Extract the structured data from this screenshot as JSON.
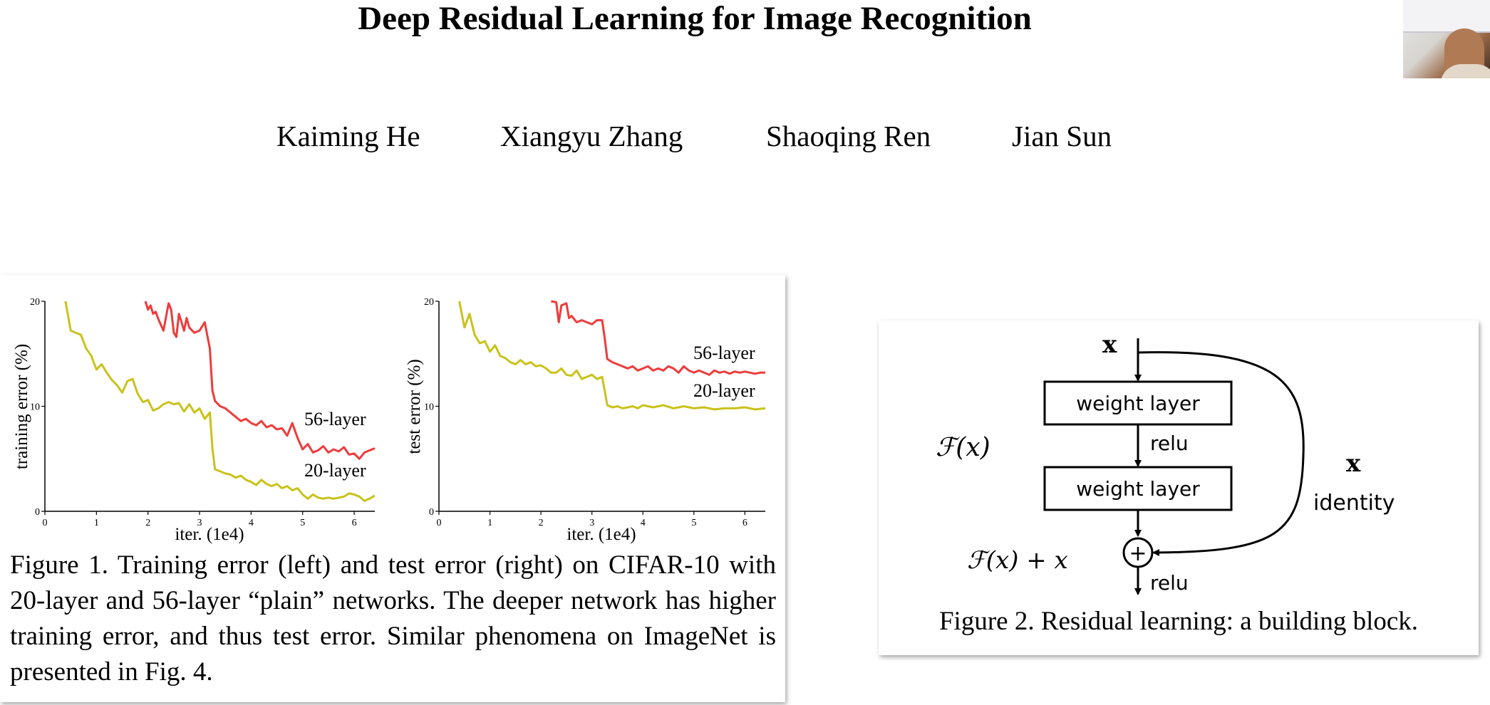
{
  "paper": {
    "title": "Deep Residual Learning for Image Recognition",
    "authors": [
      "Kaiming He",
      "Xiangyu Zhang",
      "Shaoqing Ren",
      "Jian Sun"
    ]
  },
  "figure1": {
    "caption": "Figure 1. Training error (left) and test error (right) on CIFAR-10 with 20-layer and 56-layer “plain” networks. The deeper network has higher training error, and thus test error. Similar phenomena on ImageNet is presented in Fig. 4."
  },
  "figure2": {
    "caption": "Figure 2. Residual learning: a building block.",
    "input_label": "x",
    "weight_layer_1": "weight layer",
    "weight_layer_2": "weight layer",
    "relu_1": "relu",
    "relu_2": "relu",
    "fx_label": "ℱ(x)",
    "sum_label": "ℱ(x) + x",
    "shortcut_x": "x",
    "identity_label": "identity",
    "plus_symbol": "+"
  },
  "colors": {
    "plain_56": "#ee3b3b",
    "plain_20": "#c9c21a"
  },
  "chart_data": [
    {
      "type": "line",
      "xlabel": "iter. (1e4)",
      "ylabel": "training error (%)",
      "xlim": [
        0,
        6.4
      ],
      "ylim": [
        0,
        20
      ],
      "xticks": [
        "0",
        "1",
        "2",
        "3",
        "4",
        "5",
        "6"
      ],
      "yticks": [
        "0",
        "10",
        "20"
      ],
      "series": [
        {
          "name": "56-layer",
          "color": "#ee3b3b",
          "x": [
            1.95,
            2.0,
            2.05,
            2.1,
            2.15,
            2.2,
            2.3,
            2.4,
            2.45,
            2.5,
            2.55,
            2.6,
            2.7,
            2.75,
            2.8,
            2.9,
            3.0,
            3.1,
            3.2,
            3.25,
            3.3,
            3.4,
            3.5,
            3.6,
            3.7,
            3.8,
            3.9,
            4.0,
            4.1,
            4.2,
            4.3,
            4.4,
            4.5,
            4.6,
            4.7,
            4.8,
            4.9,
            5.0,
            5.1,
            5.2,
            5.3,
            5.4,
            5.5,
            5.6,
            5.7,
            5.8,
            5.9,
            6.0,
            6.1,
            6.2,
            6.3,
            6.4
          ],
          "y": [
            20.0,
            19.2,
            19.6,
            18.8,
            19.0,
            18.3,
            17.2,
            19.8,
            19.2,
            17.0,
            16.6,
            18.8,
            17.2,
            18.4,
            17.5,
            17.0,
            17.2,
            18.0,
            15.5,
            11.5,
            10.5,
            10.0,
            9.8,
            9.4,
            9.0,
            8.6,
            8.8,
            8.4,
            8.2,
            8.6,
            8.0,
            8.2,
            7.8,
            7.9,
            7.2,
            8.4,
            7.0,
            5.9,
            6.4,
            5.6,
            5.8,
            6.2,
            5.6,
            5.9,
            5.7,
            6.1,
            5.4,
            5.5,
            5.0,
            5.6,
            5.8,
            6.0
          ]
        },
        {
          "name": "20-layer",
          "color": "#c9c21a",
          "x": [
            0.4,
            0.5,
            0.6,
            0.7,
            0.8,
            0.9,
            1.0,
            1.1,
            1.2,
            1.3,
            1.4,
            1.5,
            1.6,
            1.7,
            1.8,
            1.9,
            2.0,
            2.1,
            2.2,
            2.3,
            2.4,
            2.5,
            2.6,
            2.7,
            2.8,
            2.9,
            3.0,
            3.1,
            3.2,
            3.25,
            3.3,
            3.4,
            3.5,
            3.6,
            3.7,
            3.8,
            3.9,
            4.0,
            4.1,
            4.2,
            4.3,
            4.4,
            4.5,
            4.6,
            4.7,
            4.8,
            4.9,
            5.0,
            5.1,
            5.2,
            5.3,
            5.4,
            5.5,
            5.6,
            5.7,
            5.8,
            5.9,
            6.0,
            6.1,
            6.2,
            6.3,
            6.4
          ],
          "y": [
            20.0,
            17.2,
            17.0,
            16.8,
            15.5,
            14.8,
            13.5,
            14.0,
            13.2,
            12.5,
            12.0,
            11.3,
            12.4,
            12.6,
            11.2,
            10.4,
            10.6,
            9.6,
            9.8,
            10.2,
            10.4,
            10.2,
            10.3,
            9.5,
            10.2,
            9.4,
            9.8,
            8.8,
            9.4,
            6.0,
            4.0,
            3.8,
            3.6,
            3.5,
            3.2,
            3.4,
            3.0,
            2.8,
            2.5,
            3.0,
            2.6,
            2.4,
            2.6,
            2.2,
            2.4,
            2.0,
            2.2,
            1.6,
            1.2,
            1.6,
            1.3,
            1.2,
            1.3,
            1.2,
            1.3,
            1.4,
            1.7,
            1.6,
            1.4,
            1.0,
            1.2,
            1.5
          ]
        }
      ]
    },
    {
      "type": "line",
      "xlabel": "iter. (1e4)",
      "ylabel": "test error (%)",
      "xlim": [
        0,
        6.4
      ],
      "ylim": [
        0,
        20
      ],
      "xticks": [
        "0",
        "1",
        "2",
        "3",
        "4",
        "5",
        "6"
      ],
      "yticks": [
        "0",
        "10",
        "20"
      ],
      "series": [
        {
          "name": "56-layer",
          "color": "#ee3b3b",
          "x": [
            2.2,
            2.3,
            2.35,
            2.4,
            2.5,
            2.55,
            2.6,
            2.7,
            2.8,
            2.9,
            3.0,
            3.1,
            3.2,
            3.25,
            3.3,
            3.4,
            3.5,
            3.6,
            3.7,
            3.8,
            3.9,
            4.0,
            4.1,
            4.2,
            4.3,
            4.4,
            4.5,
            4.6,
            4.7,
            4.8,
            4.9,
            5.0,
            5.1,
            5.2,
            5.3,
            5.4,
            5.5,
            5.6,
            5.7,
            5.8,
            5.9,
            6.0,
            6.1,
            6.2,
            6.3,
            6.4
          ],
          "y": [
            20.0,
            19.9,
            18.0,
            19.6,
            19.8,
            18.4,
            18.6,
            18.0,
            18.2,
            18.0,
            17.8,
            18.2,
            18.2,
            16.5,
            14.5,
            14.2,
            14.0,
            13.8,
            13.6,
            13.8,
            13.4,
            13.6,
            13.8,
            13.4,
            13.6,
            13.4,
            13.8,
            13.6,
            13.2,
            13.8,
            13.4,
            13.2,
            13.4,
            13.2,
            13.0,
            13.4,
            13.2,
            13.3,
            13.1,
            13.3,
            13.2,
            13.3,
            13.2,
            13.1,
            13.2,
            13.2
          ]
        },
        {
          "name": "20-layer",
          "color": "#c9c21a",
          "x": [
            0.4,
            0.5,
            0.6,
            0.7,
            0.8,
            0.9,
            1.0,
            1.1,
            1.2,
            1.3,
            1.4,
            1.5,
            1.6,
            1.7,
            1.8,
            1.9,
            2.0,
            2.1,
            2.2,
            2.3,
            2.4,
            2.5,
            2.6,
            2.7,
            2.8,
            2.9,
            3.0,
            3.1,
            3.2,
            3.25,
            3.3,
            3.4,
            3.5,
            3.6,
            3.7,
            3.8,
            3.9,
            4.0,
            4.2,
            4.4,
            4.6,
            4.8,
            5.0,
            5.2,
            5.4,
            5.6,
            5.8,
            6.0,
            6.2,
            6.4
          ],
          "y": [
            20.0,
            17.5,
            18.8,
            16.8,
            16.0,
            16.2,
            15.2,
            15.8,
            14.8,
            14.6,
            14.2,
            14.0,
            14.4,
            14.0,
            14.2,
            13.8,
            13.9,
            13.6,
            13.2,
            13.2,
            13.6,
            13.0,
            12.9,
            13.4,
            12.6,
            12.8,
            13.0,
            12.6,
            12.8,
            11.5,
            10.1,
            9.9,
            10.0,
            9.8,
            9.9,
            10.0,
            9.8,
            10.1,
            9.9,
            10.1,
            9.8,
            10.0,
            9.8,
            9.9,
            9.7,
            9.8,
            9.8,
            9.9,
            9.7,
            9.8
          ]
        }
      ]
    }
  ]
}
